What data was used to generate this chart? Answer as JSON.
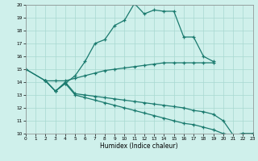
{
  "xlabel": "Humidex (Indice chaleur)",
  "xlim": [
    0,
    23
  ],
  "ylim": [
    10,
    20
  ],
  "xticks": [
    0,
    1,
    2,
    3,
    4,
    5,
    6,
    7,
    8,
    9,
    10,
    11,
    12,
    13,
    14,
    15,
    16,
    17,
    18,
    19,
    20,
    21,
    22,
    23
  ],
  "yticks": [
    10,
    11,
    12,
    13,
    14,
    15,
    16,
    17,
    18,
    19,
    20
  ],
  "bg_color": "#cff0eb",
  "grid_color": "#a8d8d0",
  "line_color": "#1a7a6e",
  "line1_x": [
    0,
    2,
    3,
    4,
    5,
    6,
    7,
    8,
    9,
    10,
    11,
    12,
    13,
    14,
    15,
    16,
    17,
    18,
    19
  ],
  "line1_y": [
    15.0,
    14.1,
    13.3,
    13.9,
    14.5,
    15.6,
    17.0,
    17.3,
    18.4,
    18.8,
    20.1,
    19.3,
    19.6,
    19.5,
    19.5,
    17.5,
    17.5,
    16.0,
    15.6
  ],
  "line2_x": [
    0,
    2,
    3,
    4,
    5,
    6,
    7,
    8,
    9,
    10,
    11,
    12,
    13,
    14,
    15,
    16,
    17,
    18,
    19
  ],
  "line2_y": [
    15.0,
    14.1,
    14.1,
    14.1,
    14.3,
    14.5,
    14.7,
    14.9,
    15.0,
    15.1,
    15.2,
    15.3,
    15.4,
    15.5,
    15.5,
    15.5,
    15.5,
    15.5,
    15.5
  ],
  "line3_x": [
    2,
    3,
    4,
    5,
    6,
    7,
    8,
    9,
    10,
    11,
    12,
    13,
    14,
    15,
    16,
    17,
    18,
    19,
    20,
    21,
    22,
    23
  ],
  "line3_y": [
    14.1,
    13.3,
    13.9,
    13.0,
    12.8,
    12.6,
    12.4,
    12.2,
    12.0,
    11.8,
    11.6,
    11.4,
    11.2,
    11.0,
    10.8,
    10.7,
    10.5,
    10.3,
    10.0,
    9.9,
    10.0,
    10.0
  ],
  "line4_x": [
    2,
    3,
    4,
    5,
    6,
    7,
    8,
    9,
    10,
    11,
    12,
    13,
    14,
    15,
    16,
    17,
    18,
    19,
    20,
    21,
    22,
    23
  ],
  "line4_y": [
    14.1,
    13.3,
    14.0,
    13.1,
    13.0,
    12.9,
    12.8,
    12.7,
    12.6,
    12.5,
    12.4,
    12.3,
    12.2,
    12.1,
    12.0,
    11.8,
    11.7,
    11.5,
    11.0,
    9.9,
    10.0,
    10.0
  ]
}
